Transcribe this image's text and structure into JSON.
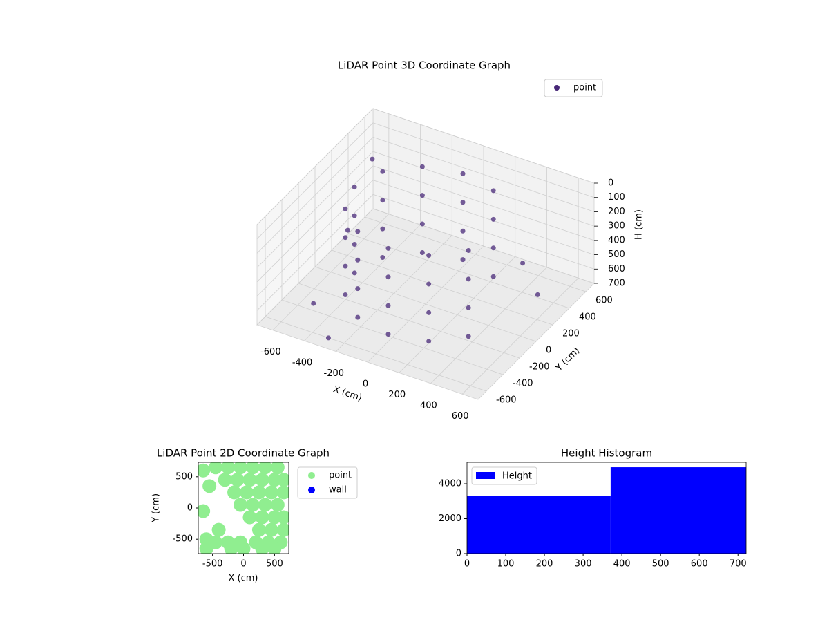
{
  "chart_data": [
    {
      "type": "scatter3d",
      "title": "LiDAR Point 3D Coordinate Graph",
      "xlabel": "X (cm)",
      "ylabel": "Y (cm)",
      "zlabel": "H (cm)",
      "xlim": [
        -700,
        700
      ],
      "ylim": [
        -700,
        700
      ],
      "zlim": [
        0,
        700
      ],
      "zinvert": true,
      "xticks": [
        -600,
        -400,
        -200,
        0,
        200,
        400,
        600
      ],
      "yticks": [
        -600,
        -400,
        -200,
        0,
        200,
        400,
        600
      ],
      "zticks": [
        0,
        100,
        200,
        300,
        400,
        500,
        600,
        700
      ],
      "grid": true,
      "legend": "upper right",
      "series": [
        {
          "name": "point",
          "color": "#482878",
          "x": [
            225,
            225,
            225,
            225,
            0,
            0,
            0,
            0,
            -225,
            -225,
            -225,
            -225,
            -390,
            -390,
            -390,
            -390,
            -450,
            -450,
            -450,
            -450,
            -390,
            -390,
            -390,
            -390,
            -225,
            -225,
            -225,
            -225,
            0,
            0,
            0,
            0,
            225,
            225,
            225,
            225,
            390,
            390,
            390,
            390,
            -650,
            -500,
            500,
            -600,
            300,
            -300
          ],
          "y": [
            390,
            390,
            390,
            390,
            450,
            450,
            450,
            450,
            390,
            390,
            390,
            390,
            225,
            225,
            225,
            225,
            0,
            0,
            0,
            0,
            -225,
            -225,
            -225,
            -225,
            -390,
            -390,
            -390,
            -390,
            -450,
            -450,
            -450,
            -450,
            -390,
            -390,
            -390,
            -390,
            -225,
            -225,
            -225,
            -225,
            300,
            -400,
            400,
            500,
            600,
            -600
          ],
          "h": [
            50,
            250,
            450,
            650,
            50,
            250,
            450,
            650,
            50,
            250,
            450,
            650,
            50,
            250,
            450,
            650,
            50,
            250,
            450,
            650,
            50,
            250,
            450,
            650,
            50,
            250,
            450,
            650,
            50,
            250,
            450,
            650,
            50,
            250,
            450,
            650,
            50,
            250,
            450,
            650,
            600,
            650,
            680,
            200,
            650,
            700
          ]
        }
      ]
    },
    {
      "type": "scatter",
      "title": "LiDAR Point 2D Coordinate Graph",
      "xlabel": "X (cm)",
      "ylabel": "Y (cm)",
      "xlim": [
        -730,
        730
      ],
      "ylim": [
        -730,
        730
      ],
      "xticks": [
        -500,
        0,
        500
      ],
      "yticks": [
        -500,
        0,
        500
      ],
      "legend": "outside right",
      "series": [
        {
          "name": "point",
          "color": "#90ee90",
          "x": [
            -450,
            -250,
            -50,
            150,
            350,
            550,
            -300,
            -100,
            100,
            300,
            500,
            650,
            -150,
            50,
            250,
            450,
            650,
            -50,
            150,
            350,
            550,
            100,
            300,
            500,
            650,
            250,
            450,
            650,
            200,
            400,
            600,
            -450,
            -250,
            -50,
            -600,
            -200,
            0,
            300,
            500,
            -650,
            -550,
            -650,
            -600,
            -400,
            -150
          ],
          "y": [
            650,
            650,
            650,
            650,
            650,
            650,
            450,
            450,
            450,
            450,
            450,
            450,
            250,
            250,
            250,
            250,
            250,
            50,
            50,
            50,
            50,
            -150,
            -150,
            -150,
            -150,
            -350,
            -350,
            -350,
            -550,
            -550,
            -550,
            -550,
            -550,
            -550,
            -650,
            -650,
            -650,
            -650,
            -650,
            600,
            350,
            -50,
            -500,
            -350,
            -600
          ]
        },
        {
          "name": "wall",
          "color": "#0000ff",
          "x": [],
          "y": []
        }
      ]
    },
    {
      "type": "histogram",
      "title": "Height Histogram",
      "bins": [
        0,
        371,
        721
      ],
      "values": [
        3290,
        4950
      ],
      "xlim": [
        0,
        721
      ],
      "ylim": [
        0,
        5230
      ],
      "xticks": [
        0,
        100,
        200,
        300,
        400,
        500,
        600,
        700
      ],
      "yticks": [
        0,
        2000,
        4000
      ],
      "legend": "upper left",
      "series_name": "Height",
      "color": "#0000ff"
    }
  ]
}
